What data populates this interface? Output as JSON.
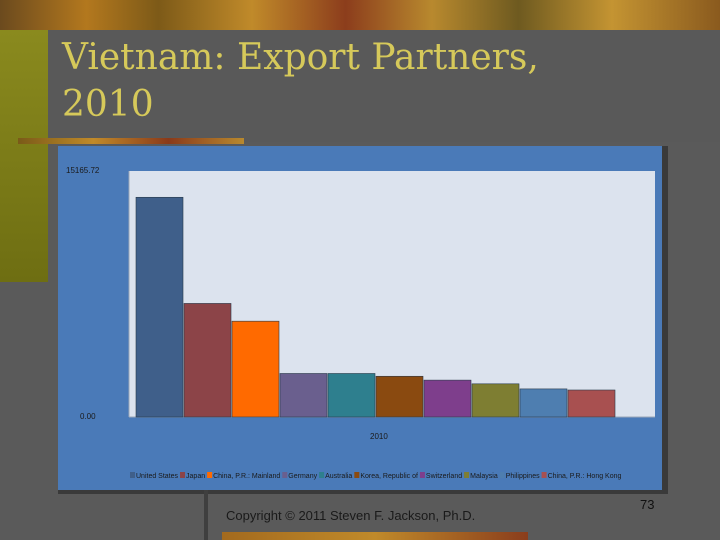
{
  "slide": {
    "title": "Vietnam: Export Partners, 2010",
    "copyright": "Copyright © 2011 Steven F. Jackson, Ph.D.",
    "page_number": "73"
  },
  "chart_data": {
    "type": "bar",
    "title": "",
    "xlabel": "",
    "ylabel": "",
    "categories": [
      "2010"
    ],
    "y_tick_labels": [
      "0.00",
      "15165.72"
    ],
    "ylim": [
      0,
      15165.72
    ],
    "grid": false,
    "legend_position": "bottom",
    "series": [
      {
        "name": "United States",
        "values": [
          14240
        ],
        "color": "#3f5f8a"
      },
      {
        "name": "Japan",
        "values": [
          7360
        ],
        "color": "#8c4448"
      },
      {
        "name": "China, P.R.: Mainland",
        "values": [
          6210
        ],
        "color": "#ff6a00"
      },
      {
        "name": "Germany",
        "values": [
          2820
        ],
        "color": "#6a5f8e"
      },
      {
        "name": "Australia",
        "values": [
          2820
        ],
        "color": "#2e7f8e"
      },
      {
        "name": "Korea, Republic of",
        "values": [
          2640
        ],
        "color": "#8a4a10"
      },
      {
        "name": "Switzerland",
        "values": [
          2390
        ],
        "color": "#7e3e8c"
      },
      {
        "name": "Malaysia",
        "values": [
          2150
        ],
        "color": "#7e7e32"
      },
      {
        "name": "Philippines",
        "values": [
          1820
        ],
        "color": "#4e7eb0"
      },
      {
        "name": "China, P.R.: Hong Kong",
        "values": [
          1750
        ],
        "color": "#a85050"
      }
    ]
  }
}
